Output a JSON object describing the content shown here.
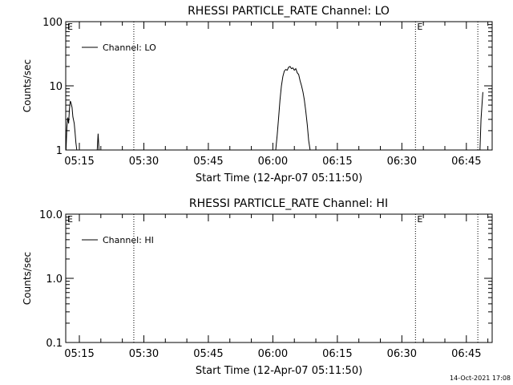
{
  "footer_date": "14-Oct-2021 17:08",
  "chart_data": [
    {
      "type": "line",
      "title": "RHESSI PARTICLE_RATE Channel: LO",
      "xlabel": "Start Time (12-Apr-07 05:11:50)",
      "ylabel": "Counts/sec",
      "y_scale": "log",
      "ylim": [
        1,
        100
      ],
      "yticks": [
        1,
        10,
        100
      ],
      "ytick_labels": [
        "1",
        "10",
        "100"
      ],
      "xlim_minutes": [
        "05:11:50",
        "06:51:00"
      ],
      "xticks": [
        "05:15",
        "05:30",
        "05:45",
        "06:00",
        "06:15",
        "06:30",
        "06:45"
      ],
      "legend": {
        "label": "Channel: LO",
        "placement": "top-left"
      },
      "vlines": [
        "05:27:40",
        "06:33:10",
        "06:47:40"
      ],
      "markers": [
        {
          "text": "E",
          "time": "05:11:50"
        },
        {
          "text": "E",
          "time": "06:33:10"
        }
      ],
      "series": [
        {
          "name": "Channel: LO",
          "segments": [
            [
              [
                "05:11:54",
                1
              ],
              [
                "05:12:06",
                2.2
              ],
              [
                "05:12:18",
                3.2
              ],
              [
                "05:12:30",
                2.6
              ],
              [
                "05:12:42",
                4.3
              ],
              [
                "05:12:54",
                5.8
              ],
              [
                "05:13:06",
                5.3
              ],
              [
                "05:13:18",
                4.6
              ],
              [
                "05:13:30",
                3.3
              ],
              [
                "05:13:48",
                2.6
              ],
              [
                "05:14:00",
                1.9
              ],
              [
                "05:14:12",
                1.3
              ],
              [
                "05:14:24",
                1
              ]
            ],
            [
              [
                "05:19:10",
                1
              ],
              [
                "05:19:22",
                1.8
              ],
              [
                "05:19:34",
                1
              ]
            ],
            [
              [
                "06:00:40",
                1
              ],
              [
                "06:01:00",
                1.7
              ],
              [
                "06:01:20",
                3.2
              ],
              [
                "06:01:40",
                6
              ],
              [
                "06:02:00",
                10
              ],
              [
                "06:02:20",
                14
              ],
              [
                "06:02:40",
                17
              ],
              [
                "06:03:00",
                18
              ],
              [
                "06:03:20",
                17.5
              ],
              [
                "06:03:40",
                19.5
              ],
              [
                "06:04:00",
                20
              ],
              [
                "06:04:20",
                18.5
              ],
              [
                "06:04:40",
                19
              ],
              [
                "06:05:00",
                17.5
              ],
              [
                "06:05:20",
                18.5
              ],
              [
                "06:05:40",
                16
              ],
              [
                "06:06:00",
                15
              ],
              [
                "06:06:20",
                12
              ],
              [
                "06:06:40",
                10
              ],
              [
                "06:07:00",
                8
              ],
              [
                "06:07:20",
                6
              ],
              [
                "06:07:40",
                4
              ],
              [
                "06:08:00",
                2.5
              ],
              [
                "06:08:20",
                1.4
              ],
              [
                "06:08:40",
                1
              ]
            ],
            [
              [
                "06:48:10",
                1
              ],
              [
                "06:48:25",
                3
              ],
              [
                "06:48:40",
                5.5
              ],
              [
                "06:48:50",
                8
              ]
            ]
          ]
        }
      ]
    },
    {
      "type": "line",
      "title": "RHESSI PARTICLE_RATE Channel: HI",
      "xlabel": "Start Time (12-Apr-07 05:11:50)",
      "ylabel": "Counts/sec",
      "y_scale": "log",
      "ylim": [
        0.1,
        10
      ],
      "yticks": [
        0.1,
        1,
        10
      ],
      "ytick_labels": [
        "0.1",
        "1.0",
        "10.0"
      ],
      "xlim_minutes": [
        "05:11:50",
        "06:51:00"
      ],
      "xticks": [
        "05:15",
        "05:30",
        "05:45",
        "06:00",
        "06:15",
        "06:30",
        "06:45"
      ],
      "legend": {
        "label": "Channel: HI",
        "placement": "top-left"
      },
      "vlines": [
        "05:27:40",
        "06:33:10",
        "06:47:40"
      ],
      "markers": [
        {
          "text": "E",
          "time": "05:11:50"
        },
        {
          "text": "E",
          "time": "06:33:10"
        }
      ],
      "series": [
        {
          "name": "Channel: HI",
          "segments": []
        }
      ]
    }
  ]
}
